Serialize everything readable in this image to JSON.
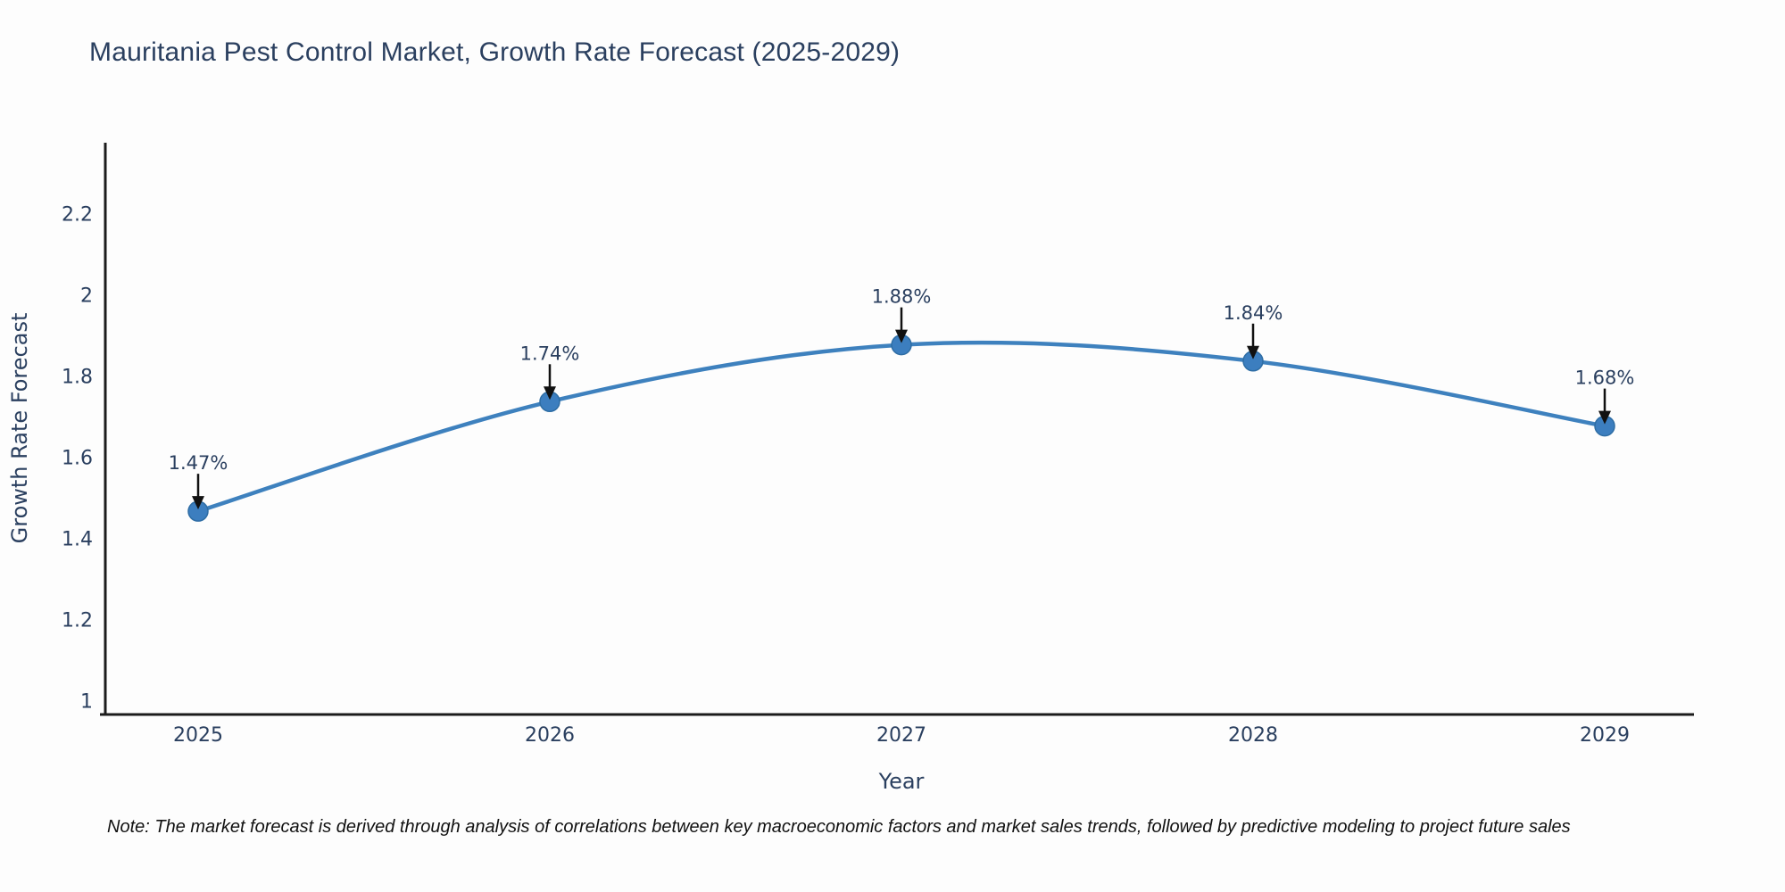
{
  "page": {
    "title": "Mauritania Pest Control Market, Growth Rate Forecast (2025-2029)",
    "note": "Note: The market forecast is derived through analysis of correlations between key macroeconomic factors and market sales trends, followed by predictive modeling to project future sales"
  },
  "chart_data": {
    "type": "line",
    "title": "Mauritania Pest Control Market, Growth Rate Forecast (2025-2029)",
    "x": [
      "2025",
      "2026",
      "2027",
      "2028",
      "2029"
    ],
    "series": [
      {
        "name": "Growth Rate Forecast",
        "values": [
          1.47,
          1.74,
          1.88,
          1.84,
          1.68
        ]
      }
    ],
    "point_labels": [
      "1.47%",
      "1.74%",
      "1.88%",
      "1.84%",
      "1.68%"
    ],
    "xlabel": "Year",
    "ylabel": "Growth Rate Forecast",
    "yticks": [
      1,
      1.2,
      1.4,
      1.6,
      1.8,
      2,
      2.2
    ],
    "ylim": [
      0.97,
      2.38
    ],
    "grid": false,
    "legend_position": "none",
    "line_shape": "spline",
    "line_color": "#3E81BE",
    "marker_color": "#3C7EBF",
    "marker_edge_color": "#2E6DA4",
    "axis_color": "#1C1C1C",
    "text_color": "#2A3F5F",
    "annotation_arrow_color": "#111111"
  }
}
